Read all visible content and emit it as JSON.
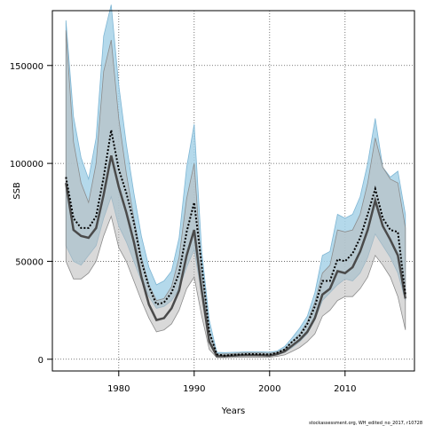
{
  "chart_data": {
    "type": "area",
    "xlabel": "Years",
    "ylabel": "SSB",
    "xlim": [
      1971.2,
      2019.2
    ],
    "ylim": [
      -6000,
      178000
    ],
    "x_ticks": [
      1980,
      1990,
      2000,
      2010
    ],
    "y_ticks": [
      0,
      50000,
      100000,
      150000
    ],
    "x_tick_labels": [
      "1980",
      "1990",
      "2000",
      "2010"
    ],
    "y_tick_labels": [
      "0",
      "50000",
      "100000",
      "150000"
    ],
    "grid": "dotted",
    "x": [
      1973,
      1974,
      1975,
      1976,
      1977,
      1978,
      1979,
      1980,
      1981,
      1982,
      1983,
      1984,
      1985,
      1986,
      1987,
      1988,
      1989,
      1990,
      1991,
      1992,
      1993,
      1994,
      1995,
      1996,
      1997,
      1998,
      1999,
      2000,
      2001,
      2002,
      2003,
      2004,
      2005,
      2006,
      2007,
      2008,
      2009,
      2010,
      2011,
      2012,
      2013,
      2014,
      2015,
      2016,
      2017,
      2018
    ],
    "series": [
      {
        "color": "#a7d2e8",
        "stroke": "#7fb6d4",
        "lower": [
          58000,
          50000,
          48000,
          53000,
          58000,
          72000,
          83000,
          68000,
          60000,
          50000,
          40000,
          32000,
          26000,
          27000,
          30000,
          36000,
          47000,
          56000,
          33000,
          9000,
          2000,
          1300,
          1500,
          1600,
          1800,
          1800,
          1800,
          1800,
          2200,
          3500,
          6000,
          9000,
          13000,
          20000,
          30000,
          34000,
          38000,
          41000,
          40000,
          44000,
          52000,
          64000,
          58000,
          52000,
          44000,
          30000
        ],
        "upper": [
          173000,
          124000,
          103000,
          92000,
          113000,
          165000,
          181000,
          140000,
          110000,
          85000,
          63000,
          47000,
          38000,
          40000,
          45000,
          62000,
          98000,
          120000,
          55000,
          20000,
          3500,
          3400,
          3500,
          3600,
          3800,
          3800,
          3800,
          3600,
          4200,
          6500,
          11000,
          16000,
          22000,
          34000,
          53000,
          55000,
          74000,
          72000,
          74000,
          83000,
          100000,
          123000,
          98000,
          93000,
          96000,
          74000
        ],
        "line": [
          93000,
          72000,
          67000,
          67000,
          73000,
          93000,
          117000,
          97000,
          85000,
          70000,
          50000,
          37000,
          28000,
          29000,
          34000,
          44000,
          65000,
          80000,
          48000,
          14000,
          2500,
          1900,
          2200,
          2400,
          2600,
          2600,
          2500,
          2400,
          3300,
          5000,
          9000,
          12000,
          18000,
          27000,
          40000,
          40000,
          51000,
          50000,
          54000,
          62000,
          74000,
          87000,
          72000,
          66000,
          65000,
          33000
        ]
      },
      {
        "color": "#b9b9b9",
        "stroke": "#8c8c8c",
        "lower": [
          50000,
          41000,
          41000,
          44000,
          50000,
          63000,
          73000,
          57000,
          50000,
          40000,
          30000,
          21000,
          14000,
          15000,
          18000,
          25000,
          36000,
          42000,
          22000,
          5000,
          800,
          800,
          900,
          1000,
          1000,
          1000,
          1000,
          1000,
          1500,
          2200,
          4000,
          6000,
          9000,
          13000,
          22000,
          25000,
          30000,
          32000,
          32000,
          36000,
          42000,
          53000,
          48000,
          42000,
          32000,
          15000
        ],
        "upper": [
          168000,
          111000,
          90000,
          80000,
          100000,
          147000,
          163000,
          123000,
          95000,
          72000,
          52000,
          38000,
          30000,
          31000,
          37000,
          52000,
          82000,
          100000,
          44000,
          14000,
          2500,
          2700,
          2900,
          3100,
          3300,
          3300,
          3200,
          3000,
          3600,
          5200,
          9000,
          13000,
          19000,
          29000,
          44000,
          48000,
          66000,
          65000,
          66000,
          74000,
          90000,
          113000,
          98000,
          92000,
          90000,
          67000
        ],
        "line": [
          90000,
          66000,
          63000,
          62000,
          67000,
          84000,
          104000,
          88000,
          75000,
          60000,
          42000,
          28000,
          20000,
          21000,
          26000,
          35000,
          53000,
          66000,
          35000,
          9000,
          1600,
          1600,
          1800,
          2000,
          2100,
          2100,
          2000,
          1900,
          2600,
          4000,
          7000,
          10000,
          14000,
          21000,
          33000,
          36000,
          45000,
          44000,
          47000,
          55000,
          66000,
          81000,
          68000,
          61000,
          53000,
          31000
        ]
      }
    ],
    "credit": "stockassessment.org, WH_edited_no_2017, r10728"
  }
}
